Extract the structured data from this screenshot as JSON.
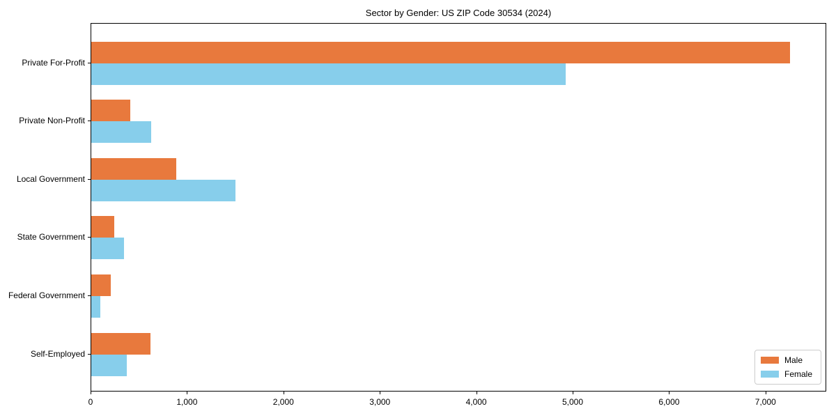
{
  "chart_data": {
    "type": "bar",
    "orientation": "horizontal",
    "title": "Sector by Gender: US ZIP Code 30534 (2024)",
    "categories": [
      "Private For-Profit",
      "Private Non-Profit",
      "Local Government",
      "State Government",
      "Federal Government",
      "Self-Employed"
    ],
    "series": [
      {
        "name": "Male",
        "color": "#E8793D",
        "values": [
          7250,
          405,
          880,
          240,
          205,
          615
        ]
      },
      {
        "name": "Female",
        "color": "#87CEEB",
        "values": [
          4920,
          620,
          1495,
          340,
          95,
          370
        ]
      }
    ],
    "xlabel": "",
    "ylabel": "",
    "xlim": [
      0,
      7630
    ],
    "xticks": [
      0,
      1000,
      2000,
      3000,
      4000,
      5000,
      6000,
      7000
    ],
    "xtick_labels": [
      "0",
      "1,000",
      "2,000",
      "3,000",
      "4,000",
      "5,000",
      "6,000",
      "7,000"
    ],
    "grid": false,
    "legend_position": "lower right",
    "spine_color": "#000000",
    "background_color": "#ffffff"
  }
}
